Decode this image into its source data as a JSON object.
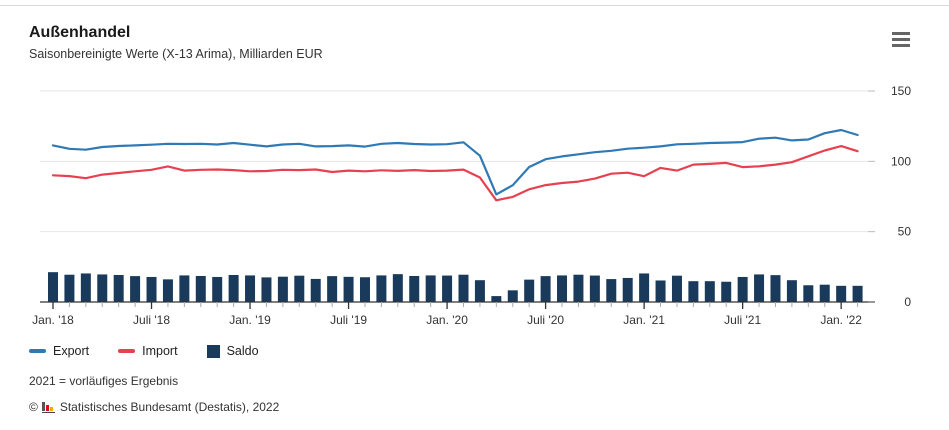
{
  "header": {
    "title": "Außenhandel",
    "subtitle": "Saisonbereinigte Werte (X-13 Arima), Milliarden EUR"
  },
  "menu": {
    "icon": "hamburger-menu-icon"
  },
  "chart_data": {
    "type": "line+bar",
    "title": "Außenhandel",
    "subtitle": "Saisonbereinigte Werte (X-13 Arima), Milliarden EUR",
    "unit": "Milliarden EUR",
    "grid": true,
    "legend_position": "bottom",
    "ylim": [
      0,
      150
    ],
    "yticks": [
      0,
      50,
      100,
      150
    ],
    "x": [
      "Jan. '18",
      "Feb. '18",
      "Mär. '18",
      "Apr. '18",
      "Mai '18",
      "Jun. '18",
      "Jul. '18",
      "Aug. '18",
      "Sep. '18",
      "Okt. '18",
      "Nov. '18",
      "Dez. '18",
      "Jan. '19",
      "Feb. '19",
      "Mär. '19",
      "Apr. '19",
      "Mai '19",
      "Jun. '19",
      "Jul. '19",
      "Aug. '19",
      "Sep. '19",
      "Okt. '19",
      "Nov. '19",
      "Dez. '19",
      "Jan. '20",
      "Feb. '20",
      "Mär. '20",
      "Apr. '20",
      "Mai '20",
      "Jun. '20",
      "Jul. '20",
      "Aug. '20",
      "Sep. '20",
      "Okt. '20",
      "Nov. '20",
      "Dez. '20",
      "Jan. '21",
      "Feb. '21",
      "Mär. '21",
      "Apr. '21",
      "Mai '21",
      "Jun. '21",
      "Jul. '21",
      "Aug. '21",
      "Sep. '21",
      "Okt. '21",
      "Nov. '21",
      "Dez. '21",
      "Jan. '22",
      "Feb. '22"
    ],
    "xtick_indices": [
      0,
      6,
      12,
      18,
      24,
      30,
      36,
      42,
      48
    ],
    "xtick_labels": [
      "Jan. '18",
      "Juli '18",
      "Jan. '19",
      "Juli '19",
      "Jan. '20",
      "Juli '20",
      "Jan. '21",
      "Juli '21",
      "Jan. '22"
    ],
    "series": [
      {
        "name": "Export",
        "type": "line",
        "color": "#2f7ab5",
        "values": [
          111.3,
          108.9,
          108.3,
          110.2,
          110.9,
          111.3,
          111.8,
          112.5,
          112.3,
          112.5,
          112.0,
          113.0,
          111.8,
          110.6,
          112.0,
          112.5,
          110.6,
          110.8,
          111.3,
          110.5,
          112.5,
          113.0,
          112.3,
          112.0,
          112.2,
          113.5,
          104.0,
          76.5,
          83.0,
          96.0,
          101.5,
          103.5,
          105.0,
          106.5,
          107.5,
          109.0,
          109.7,
          110.6,
          112.1,
          112.5,
          113.0,
          113.3,
          113.7,
          116.1,
          116.8,
          114.9,
          115.5,
          120.0,
          122.3,
          118.7
        ]
      },
      {
        "name": "Import",
        "type": "line",
        "color": "#e64150",
        "values": [
          90.1,
          89.5,
          88.0,
          90.6,
          91.7,
          92.9,
          94.0,
          96.4,
          93.4,
          94.0,
          94.2,
          93.8,
          92.9,
          93.1,
          94.0,
          93.8,
          94.2,
          92.4,
          93.4,
          92.9,
          93.6,
          93.2,
          93.8,
          93.1,
          93.4,
          94.1,
          88.5,
          72.3,
          74.7,
          80.1,
          83.1,
          84.6,
          85.6,
          87.7,
          91.2,
          91.9,
          89.4,
          95.3,
          93.4,
          97.7,
          98.2,
          98.9,
          95.9,
          96.5,
          97.7,
          99.4,
          103.6,
          107.7,
          110.8,
          107.2
        ]
      },
      {
        "name": "Saldo",
        "type": "bar",
        "color": "#1a3a5c",
        "values": [
          21.2,
          19.4,
          20.3,
          19.6,
          19.2,
          18.4,
          17.8,
          16.1,
          18.9,
          18.5,
          17.8,
          19.2,
          18.9,
          17.5,
          18.0,
          18.7,
          16.4,
          18.4,
          17.9,
          17.6,
          18.9,
          19.8,
          18.5,
          18.9,
          18.8,
          19.4,
          15.5,
          4.2,
          8.3,
          15.9,
          18.4,
          18.9,
          19.4,
          18.8,
          16.3,
          17.1,
          20.3,
          15.3,
          18.7,
          14.8,
          14.8,
          14.4,
          17.8,
          19.6,
          19.1,
          15.5,
          11.9,
          12.3,
          11.5,
          11.5
        ]
      }
    ]
  },
  "legend": {
    "items": [
      {
        "label": "Export",
        "swatch": "line",
        "color": "#2f7ab5"
      },
      {
        "label": "Import",
        "swatch": "line",
        "color": "#e64150"
      },
      {
        "label": "Saldo",
        "swatch": "box",
        "color": "#1a3a5c"
      }
    ]
  },
  "footnote": "2021 = vorläufiges Ergebnis",
  "copyright": {
    "prefix": "©",
    "logo_icon": "destatis-logo-icon",
    "text": "Statistisches Bundesamt (Destatis), 2022"
  },
  "colors": {
    "export": "#2f7ab5",
    "import": "#e64150",
    "saldo": "#1a3a5c",
    "grid": "#e6e6e6",
    "axis": "#333333"
  }
}
